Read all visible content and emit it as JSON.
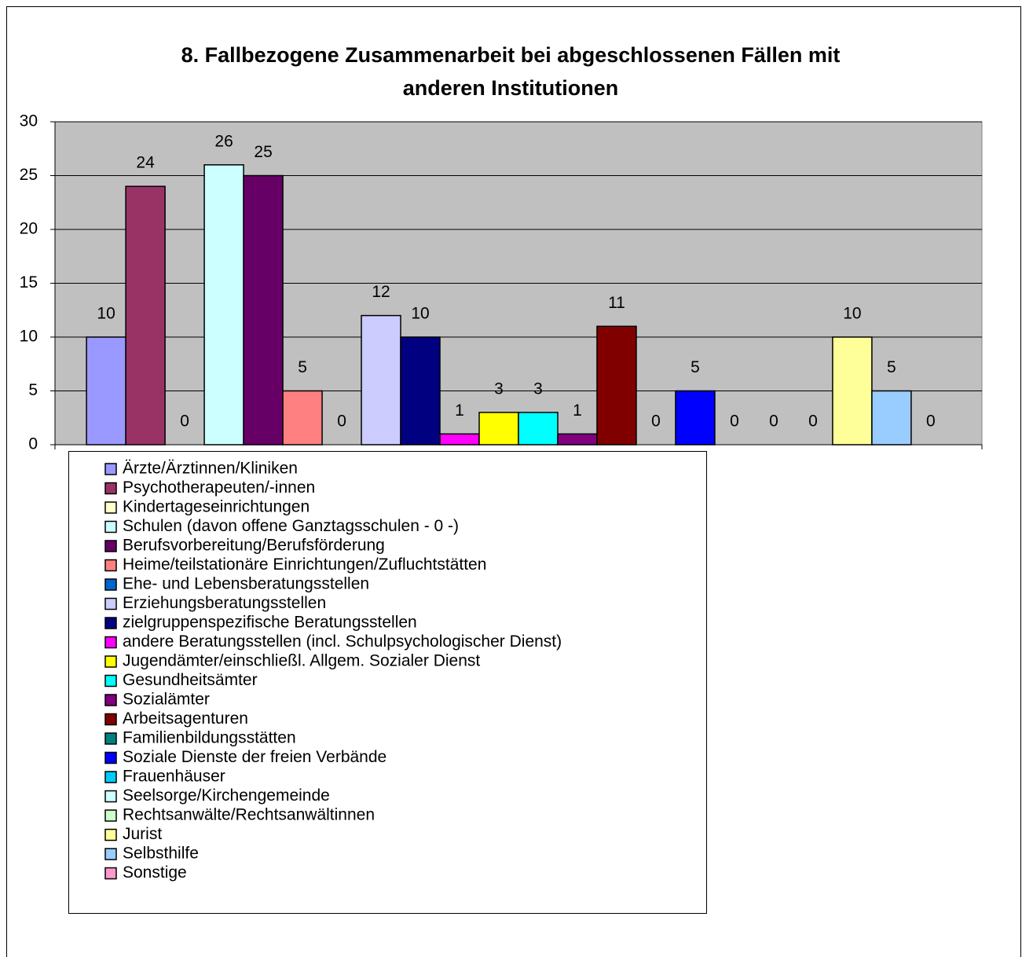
{
  "chart_data": {
    "type": "bar",
    "title": [
      "8. Fallbezogene Zusammenarbeit bei abgeschlossenen Fällen mit",
      "anderen Institutionen"
    ],
    "categories": [
      null
    ],
    "ylim": [
      0,
      30
    ],
    "yticks": [
      0,
      5,
      10,
      15,
      20,
      25,
      30
    ],
    "grid": true,
    "legend": "bottom",
    "series": [
      {
        "name": "Ärzte/Ärztinnen/Kliniken",
        "color": "#9999ff",
        "values": [
          10
        ]
      },
      {
        "name": "Psychotherapeuten/-innen",
        "color": "#993366",
        "values": [
          24
        ]
      },
      {
        "name": "Kindertageseinrichtungen",
        "color": "#ffffcc",
        "values": [
          0
        ]
      },
      {
        "name": "Schulen (davon offene Ganztagsschulen - 0 -)",
        "color": "#ccffff",
        "values": [
          26
        ]
      },
      {
        "name": "Berufsvorbereitung/Berufsförderung",
        "color": "#660066",
        "values": [
          25
        ]
      },
      {
        "name": "Heime/teilstationäre Einrichtungen/Zufluchtstätten",
        "color": "#ff8080",
        "values": [
          5
        ]
      },
      {
        "name": "Ehe- und Lebensberatungsstellen",
        "color": "#0066cc",
        "values": [
          0
        ]
      },
      {
        "name": "Erziehungsberatungsstellen",
        "color": "#ccccff",
        "values": [
          12
        ]
      },
      {
        "name": "zielgruppenspezifische Beratungsstellen",
        "color": "#000080",
        "values": [
          10
        ]
      },
      {
        "name": "andere Beratungsstellen (incl. Schulpsychologischer Dienst)",
        "color": "#ff00ff",
        "values": [
          1
        ]
      },
      {
        "name": "Jugendämter/einschließl. Allgem. Sozialer Dienst",
        "color": "#ffff00",
        "values": [
          3
        ]
      },
      {
        "name": "Gesundheitsämter",
        "color": "#00ffff",
        "values": [
          3
        ]
      },
      {
        "name": "Sozialämter",
        "color": "#800080",
        "values": [
          1
        ]
      },
      {
        "name": "Arbeitsagenturen",
        "color": "#800000",
        "values": [
          11
        ]
      },
      {
        "name": "Familienbildungsstätten",
        "color": "#008080",
        "values": [
          0
        ]
      },
      {
        "name": "Soziale Dienste der freien Verbände",
        "color": "#0000ff",
        "values": [
          5
        ]
      },
      {
        "name": "Frauenhäuser",
        "color": "#00ccff",
        "values": [
          0
        ]
      },
      {
        "name": "Seelsorge/Kirchengemeinde",
        "color": "#ccffff",
        "values": [
          0
        ]
      },
      {
        "name": "Rechtsanwälte/Rechtsanwältinnen",
        "color": "#ccffcc",
        "values": [
          0
        ]
      },
      {
        "name": "Jurist",
        "color": "#ffff99",
        "values": [
          10
        ]
      },
      {
        "name": "Selbsthilfe",
        "color": "#99ccff",
        "values": [
          5
        ]
      },
      {
        "name": "Sonstige",
        "color": "#ff99cc",
        "values": [
          0
        ]
      }
    ]
  }
}
